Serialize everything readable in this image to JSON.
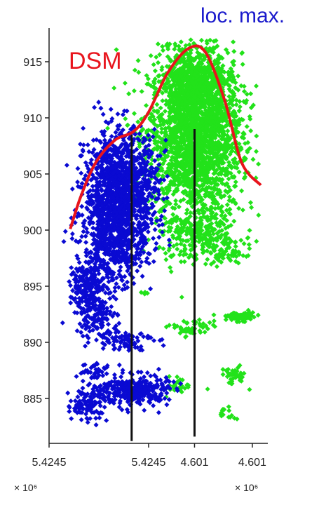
{
  "colors": {
    "blue_tree": "#0a0ad2",
    "green_tree": "#22e21a",
    "dsm": "#e8141c",
    "stem": "#111111",
    "axis": "#222222",
    "annotation_blue": "#1a1acc"
  },
  "chart_data": {
    "type": "scatter",
    "title": "",
    "xlabel": "",
    "ylabel": "",
    "ylim": [
      881,
      918
    ],
    "y_ticks": [
      885,
      890,
      895,
      900,
      905,
      910,
      915
    ],
    "x_tick_labels": [
      {
        "text": "5.4245",
        "pos": 0.0
      },
      {
        "text": "5.4245",
        "pos": 0.47
      },
      {
        "text": "4.601",
        "pos": 0.687
      },
      {
        "text": "4.601",
        "pos": 0.96
      }
    ],
    "x_exponents": [
      "× 10⁶",
      "× 10⁶"
    ],
    "annotations": {
      "dsm": "DSM",
      "local_max": "loc. max."
    },
    "series": [
      {
        "name": "",
        "clusters": [
          {
            "cx": 0.34,
            "cy": 903.5,
            "sx": 0.085,
            "sy": 2.6,
            "n": 1300
          },
          {
            "cx": 0.3,
            "cy": 898.5,
            "sx": 0.075,
            "sy": 1.8,
            "n": 450
          },
          {
            "cx": 0.18,
            "cy": 895.0,
            "sx": 0.04,
            "sy": 1.0,
            "n": 160
          },
          {
            "cx": 0.22,
            "cy": 892.5,
            "sx": 0.05,
            "sy": 0.8,
            "n": 120
          },
          {
            "cx": 0.35,
            "cy": 890.3,
            "sx": 0.07,
            "sy": 0.5,
            "n": 90
          },
          {
            "cx": 0.2,
            "cy": 887.5,
            "sx": 0.04,
            "sy": 0.4,
            "n": 40
          },
          {
            "cx": 0.4,
            "cy": 885.7,
            "sx": 0.08,
            "sy": 0.7,
            "n": 320
          },
          {
            "cx": 0.18,
            "cy": 884.5,
            "sx": 0.05,
            "sy": 0.8,
            "n": 110
          }
        ]
      },
      {
        "name": "",
        "clusters": [
          {
            "cx": 0.69,
            "cy": 908.5,
            "sx": 0.11,
            "sy": 3.6,
            "n": 2300
          },
          {
            "cx": 0.7,
            "cy": 913.5,
            "sx": 0.07,
            "sy": 1.4,
            "n": 500
          },
          {
            "cx": 0.72,
            "cy": 899.5,
            "sx": 0.1,
            "sy": 1.2,
            "n": 280
          },
          {
            "cx": 0.85,
            "cy": 898.0,
            "sx": 0.04,
            "sy": 0.6,
            "n": 40
          },
          {
            "cx": 0.9,
            "cy": 892.3,
            "sx": 0.05,
            "sy": 0.2,
            "n": 70
          },
          {
            "cx": 0.67,
            "cy": 891.2,
            "sx": 0.05,
            "sy": 0.4,
            "n": 50
          },
          {
            "cx": 0.87,
            "cy": 887.0,
            "sx": 0.03,
            "sy": 0.4,
            "n": 40
          },
          {
            "cx": 0.62,
            "cy": 886.2,
            "sx": 0.03,
            "sy": 0.4,
            "n": 30
          },
          {
            "cx": 0.84,
            "cy": 883.6,
            "sx": 0.02,
            "sy": 0.3,
            "n": 14
          },
          {
            "cx": 0.46,
            "cy": 894.3,
            "sx": 0.01,
            "sy": 0.2,
            "n": 5
          }
        ]
      }
    ],
    "stems": [
      {
        "x": 0.39,
        "y_from": 881.2,
        "y_to": 908.5
      },
      {
        "x": 0.687,
        "y_from": 881.6,
        "y_to": 909.0
      }
    ],
    "dsm_line": [
      [
        0.1,
        900.1
      ],
      [
        0.15,
        903.0
      ],
      [
        0.22,
        906.0
      ],
      [
        0.31,
        908.0
      ],
      [
        0.4,
        908.8
      ],
      [
        0.47,
        910.5
      ],
      [
        0.56,
        914.0
      ],
      [
        0.66,
        916.2
      ],
      [
        0.74,
        915.8
      ],
      [
        0.83,
        911.5
      ],
      [
        0.91,
        906.0
      ],
      [
        1.0,
        904.0
      ]
    ]
  }
}
